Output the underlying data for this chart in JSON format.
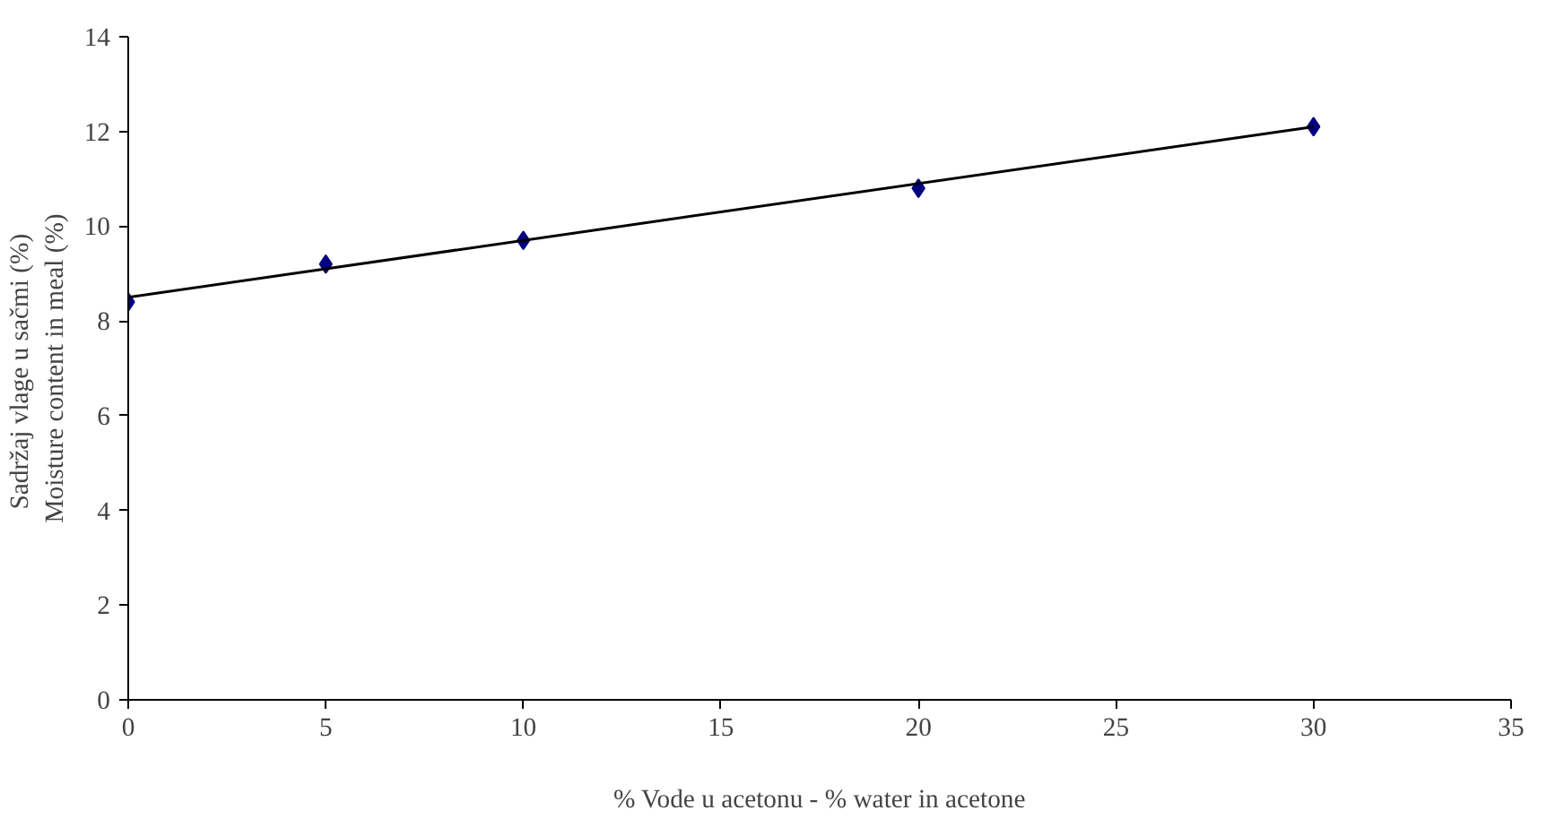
{
  "chart_data": {
    "type": "scatter",
    "xlabel": "% Vode u acetonu - % water in acetone",
    "ylabel": "Sadržaj vlage u sačmi  (%)\nMoisture content in meal (%)",
    "x": [
      0,
      5,
      10,
      20,
      30
    ],
    "series": [
      {
        "color": "#000080",
        "marker": "diamond",
        "values": [
          8.4,
          9.2,
          9.7,
          10.8,
          12.1
        ]
      },
      {
        "type": "line",
        "color": "#000000",
        "x": [
          0,
          30
        ],
        "values": [
          8.5,
          12.1
        ]
      }
    ],
    "xlim": [
      0,
      35
    ],
    "xticks": [
      0,
      5,
      10,
      15,
      20,
      25,
      30,
      35
    ],
    "ylim": [
      0,
      14
    ],
    "yticks": [
      0,
      2,
      4,
      6,
      8,
      10,
      12,
      14
    ],
    "grid": false
  }
}
